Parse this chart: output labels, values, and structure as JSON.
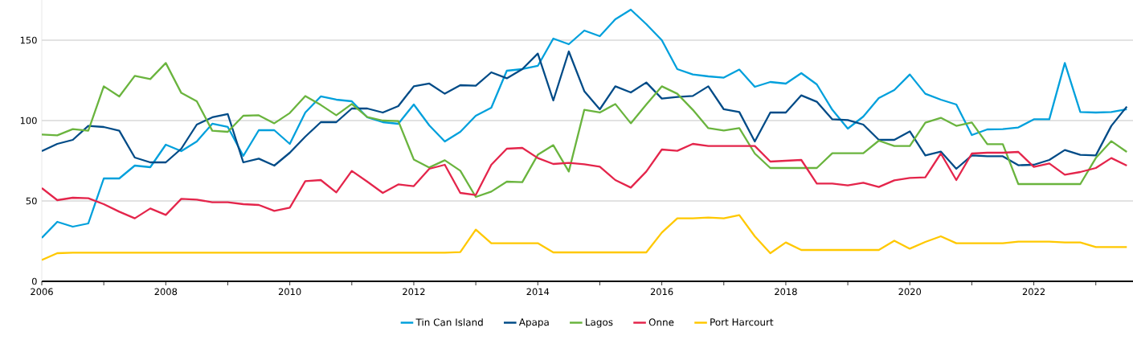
{
  "chart_data": {
    "type": "line",
    "x": [
      2006,
      2006.25,
      2006.5,
      2006.75,
      2007,
      2007.25,
      2007.5,
      2007.75,
      2008,
      2008.25,
      2008.5,
      2008.75,
      2009,
      2009.25,
      2009.5,
      2009.75,
      2010,
      2010.25,
      2010.5,
      2010.75,
      2011,
      2011.25,
      2011.5,
      2011.75,
      2012,
      2012.25,
      2012.5,
      2012.75,
      2013,
      2013.25,
      2013.5,
      2013.75,
      2014,
      2014.25,
      2014.5,
      2014.75,
      2015,
      2015.25,
      2015.5,
      2015.75,
      2016,
      2016.25,
      2016.5,
      2016.75,
      2017,
      2017.25,
      2017.5,
      2017.75,
      2018,
      2018.25,
      2018.5,
      2018.75,
      2019,
      2019.25,
      2019.5,
      2019.75,
      2020,
      2020.25,
      2020.5,
      2020.75,
      2021,
      2021.25,
      2021.5,
      2021.75,
      2022,
      2022.25,
      2022.5,
      2022.75,
      2023,
      2023.25,
      2023.5
    ],
    "series": [
      {
        "name": "Tin Can Island",
        "color": "#00a0dc",
        "values": [
          27,
          37,
          34,
          36,
          64,
          64,
          72,
          71,
          85,
          81,
          87,
          98,
          96,
          78,
          94,
          94,
          85.5,
          105,
          115,
          113,
          112,
          102,
          99,
          98,
          110,
          97,
          87,
          93,
          103,
          108,
          131,
          132,
          134,
          151,
          147.5,
          156,
          152.5,
          163,
          169,
          160,
          150,
          132,
          128.7,
          127.5,
          126.7,
          131.7,
          121,
          124,
          123,
          129.5,
          122.5,
          106.7,
          95,
          102.5,
          114,
          119,
          128.7,
          116.7,
          113,
          110,
          91,
          94.5,
          94.7,
          95.7,
          100.8,
          100.8,
          135.8,
          105.3,
          105,
          105.3,
          107
        ]
      },
      {
        "name": "Apapa",
        "color": "#004b87",
        "values": [
          81,
          85.5,
          88,
          96.7,
          96,
          93.7,
          77,
          74,
          74,
          82.5,
          97.5,
          102,
          104,
          74,
          76.3,
          72,
          80,
          90,
          99,
          99,
          107.5,
          107.5,
          105,
          109,
          121.3,
          123,
          116.7,
          122,
          121.7,
          130,
          126.3,
          132,
          141.7,
          112.5,
          143,
          118.3,
          107,
          121.3,
          117.5,
          123.7,
          113.7,
          114.7,
          115.3,
          121.3,
          107,
          105.3,
          87,
          105,
          105,
          115.7,
          111.7,
          100.8,
          100.3,
          97.5,
          88,
          88,
          93.3,
          78.3,
          80.7,
          70,
          78.3,
          77.8,
          77.8,
          72.2,
          72.5,
          75.5,
          81.7,
          78.7,
          78.3,
          96.7,
          108.7
        ]
      },
      {
        "name": "Lagos",
        "color": "#6ab43e",
        "values": [
          91.3,
          90.8,
          94.7,
          93.7,
          121.3,
          115,
          127.8,
          125.8,
          135.8,
          117.2,
          112,
          93.7,
          93,
          103,
          103.3,
          98.3,
          104.7,
          115.3,
          109.7,
          103.3,
          110.3,
          102.2,
          100,
          99.7,
          75.8,
          70.8,
          75.3,
          68.8,
          52.5,
          55.8,
          62,
          61.7,
          78.7,
          84.7,
          68.3,
          106.7,
          105,
          110.3,
          98.3,
          110,
          121.3,
          116.7,
          106.7,
          95.3,
          93.8,
          95.3,
          79.5,
          70.5,
          70.5,
          70.5,
          70.5,
          79.7,
          79.7,
          79.7,
          87.5,
          84.2,
          84.2,
          98.7,
          101.7,
          96.7,
          98.8,
          85.3,
          85.3,
          60.5,
          60.5,
          60.5,
          60.5,
          60.5,
          76.7,
          87.2,
          80.5
        ]
      },
      {
        "name": "Onne",
        "color": "#e4254b",
        "values": [
          58,
          50.5,
          52,
          51.7,
          48,
          43.3,
          39.2,
          45.3,
          41.3,
          51.3,
          50.8,
          49.2,
          49.2,
          48,
          47.5,
          43.8,
          45.8,
          62.3,
          63,
          55.3,
          68.7,
          62,
          55,
          60.3,
          59.2,
          70,
          72.5,
          55,
          53.7,
          72.5,
          82.5,
          83,
          76.7,
          73,
          73.7,
          72.8,
          71.3,
          63,
          58.3,
          68.3,
          82,
          81.2,
          85.5,
          84.2,
          84.2,
          84.2,
          84.2,
          74.5,
          75,
          75.5,
          60.8,
          60.8,
          59.7,
          61.3,
          58.7,
          62.8,
          64.3,
          64.7,
          79.5,
          63,
          79.5,
          80,
          80,
          80.5,
          71.2,
          73.3,
          66.3,
          68,
          70.5,
          76.7,
          72
        ]
      },
      {
        "name": "Port Harcourt",
        "color": "#ffc800",
        "values": [
          13.3,
          17.5,
          17.8,
          17.8,
          17.8,
          17.8,
          17.8,
          17.8,
          17.8,
          17.8,
          17.8,
          17.8,
          17.8,
          17.8,
          17.8,
          17.8,
          17.8,
          17.8,
          17.8,
          17.8,
          17.8,
          17.8,
          17.8,
          17.8,
          17.8,
          17.8,
          17.8,
          18.2,
          32.2,
          23.7,
          23.7,
          23.7,
          23.7,
          18,
          18,
          18,
          18,
          18,
          18,
          18,
          30.3,
          39.2,
          39.2,
          39.7,
          39.2,
          41.2,
          28,
          17.5,
          24.2,
          19.5,
          19.5,
          19.5,
          19.5,
          19.5,
          19.5,
          25.3,
          20.3,
          24.5,
          28,
          23.7,
          23.7,
          23.7,
          23.7,
          24.7,
          24.7,
          24.7,
          24.2,
          24.2,
          21.3,
          21.3,
          21.3
        ]
      }
    ],
    "xlim": [
      2006,
      2023.6
    ],
    "ylim": [
      0,
      175
    ],
    "xticks": [
      2006,
      {
        "value": 2007,
        "label": null
      },
      2008,
      {
        "value": 2009,
        "label": null
      },
      2010,
      {
        "value": 2011,
        "label": null
      },
      2012,
      {
        "value": 2013,
        "label": null
      },
      2014,
      {
        "value": 2015,
        "label": null
      },
      2016,
      {
        "value": 2017,
        "label": null
      },
      2018,
      {
        "value": 2019,
        "label": null
      },
      2020,
      {
        "value": 2021,
        "label": null
      },
      2022,
      {
        "value": 2023,
        "label": null
      }
    ],
    "yticks": [
      0,
      50,
      100,
      150
    ],
    "grid": "y",
    "legend": "bottom"
  }
}
